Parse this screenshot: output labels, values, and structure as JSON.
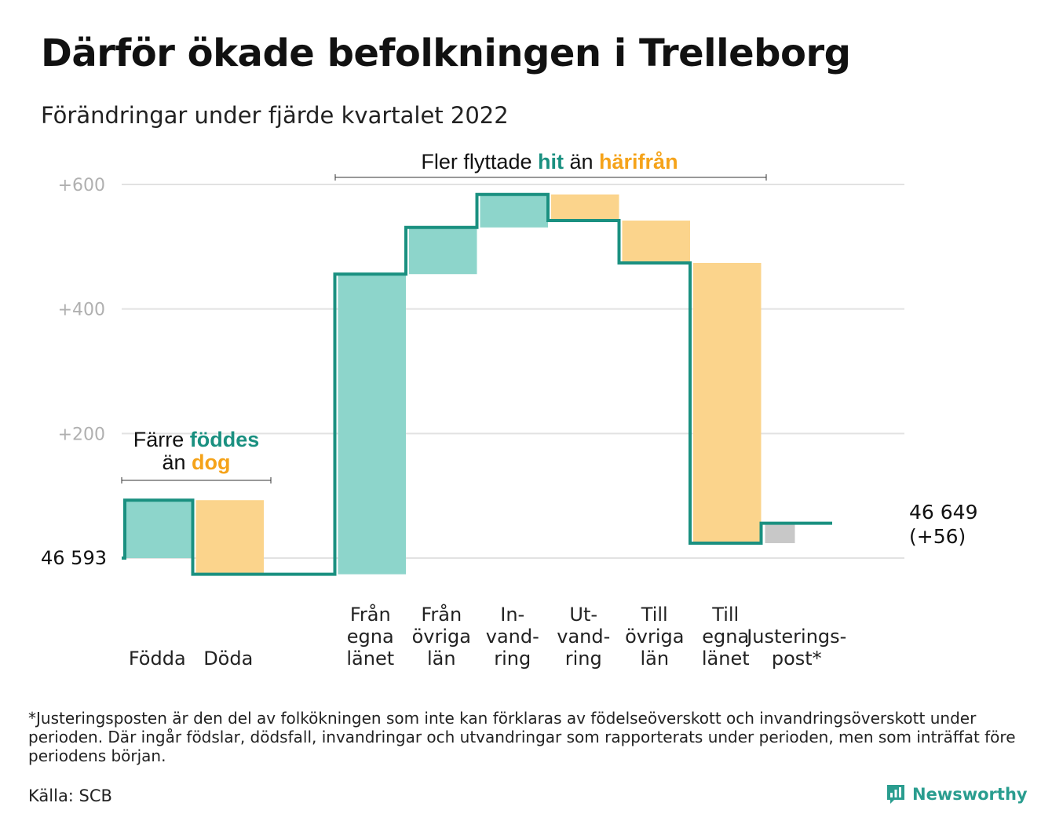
{
  "title": "Därför ökade befolkningen i Trelleborg",
  "subtitle": "Förändringar under fjärde kvartalet 2022",
  "footnote": "*Justeringsposten är den del av folkökningen som inte kan förklaras av födelseöverskott och invandringsöverskott under perioden. Där ingår födslar, dödsfall, invandringar och utvandringar som rapporterats under perioden, men som inträffat före periodens början.",
  "source": "Källa: SCB",
  "logo_text": "Newsworthy",
  "colors": {
    "positive": "#8dd5cb",
    "negative": "#fbd48c",
    "adjustment": "#c8c8c8",
    "line": "#1a9080",
    "teal_text": "#1a9080",
    "orange_text": "#f5a31a",
    "grid": "#e2e2e2",
    "axis_text": "#b0b0b0"
  },
  "annotations": {
    "births": {
      "prefix": "Färre ",
      "hl1": "föddes",
      "line2_prefix": "än ",
      "hl2": "dog"
    },
    "migration": {
      "prefix": "Fler flyttade ",
      "hl1": "hit",
      "mid": " än ",
      "hl2": "härifrån"
    }
  },
  "chart_data": {
    "type": "waterfall",
    "start_label": "46 593",
    "end_label": "46 649",
    "end_change_label": "(+56)",
    "y_ticks": [
      {
        "value": 0,
        "label": ""
      },
      {
        "value": 200,
        "label": "+200"
      },
      {
        "value": 400,
        "label": "+400"
      },
      {
        "value": 600,
        "label": "+600"
      }
    ],
    "ylim": [
      -40,
      620
    ],
    "steps": [
      {
        "label": [
          "Födda"
        ],
        "change": 93,
        "kind": "positive"
      },
      {
        "label": [
          "Döda"
        ],
        "change": -119,
        "kind": "negative"
      },
      {
        "label": [],
        "change": 0,
        "kind": "gap"
      },
      {
        "label": [
          "Från",
          "egna",
          "länet"
        ],
        "change": 482,
        "kind": "positive"
      },
      {
        "label": [
          "Från",
          "övriga",
          "län"
        ],
        "change": 75,
        "kind": "positive"
      },
      {
        "label": [
          "In-",
          "vand-",
          "ring"
        ],
        "change": 53,
        "kind": "positive"
      },
      {
        "label": [
          "Ut-",
          "vand-",
          "ring"
        ],
        "change": -42,
        "kind": "negative"
      },
      {
        "label": [
          "Till",
          "övriga",
          "län"
        ],
        "change": -68,
        "kind": "negative"
      },
      {
        "label": [
          "Till",
          "egna",
          "länet"
        ],
        "change": -450,
        "kind": "negative"
      },
      {
        "label": [
          "Justerings-",
          "post*"
        ],
        "change": 32,
        "kind": "adjustment"
      }
    ]
  }
}
